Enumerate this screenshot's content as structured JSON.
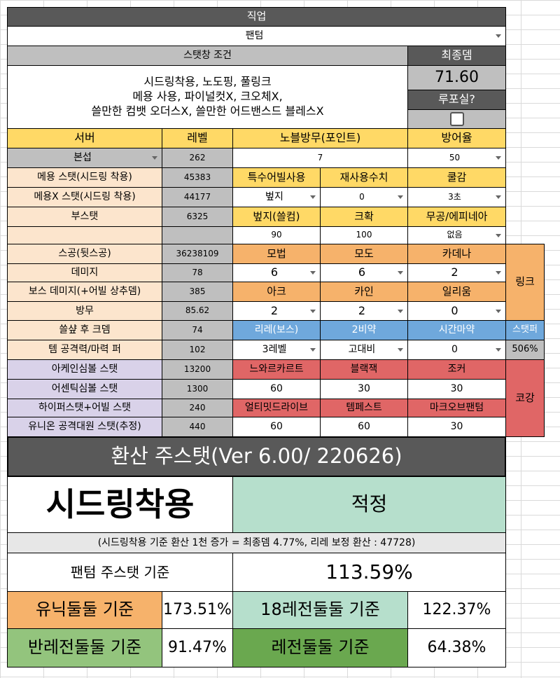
{
  "job": {
    "label": "직업",
    "value": "팬텀"
  },
  "stat_window": {
    "label": "스탯창 조건",
    "lines": [
      "시드링착용, 노도핑, 풀링크",
      "메용 사용, 파이널컷X, 크오체X,",
      "쓸만한 컴뱃 오더스X, 쓸만한 어드밴스드 블레스X"
    ]
  },
  "final_dmg": {
    "label": "최종뎀",
    "value": "71.60"
  },
  "lupo": {
    "label": "루포실?"
  },
  "left": {
    "server_label": "서버",
    "level_label": "레벨",
    "server": "본섭",
    "level": "262",
    "rows": [
      {
        "label": "메용 스탯(시드링 착용)",
        "value": "45383"
      },
      {
        "label": "메용X 스탯(시드링 착용)",
        "value": "44177"
      },
      {
        "label": "부스탯",
        "value": "6325"
      },
      {
        "label": "",
        "value": ""
      },
      {
        "label": "스공(뒷스공)",
        "value": "36238109"
      },
      {
        "label": "데미지",
        "value": "78"
      },
      {
        "label": "보스 데미지(+어빌 상추뎀)",
        "value": "385"
      },
      {
        "label": "방무",
        "value": "85.62"
      },
      {
        "label": "쓸샾 후 크뎀",
        "value": "74"
      },
      {
        "label": "템 공격력/마력 퍼",
        "value": "102"
      }
    ],
    "symbols": [
      {
        "label": "아케인심볼 스탯",
        "value": "13200"
      },
      {
        "label": "어센틱심볼 스탯",
        "value": "1300"
      },
      {
        "label": "하이퍼스탯+어빌 스탯",
        "value": "240"
      },
      {
        "label": "유니온 공격대원 스탯(추정)",
        "value": "440"
      }
    ]
  },
  "options": {
    "noble_label": "노블방무(포인트)",
    "noble_value": "7",
    "defense_label": "방어율",
    "defense_value": "50",
    "special_abil_label": "특수어빌사용",
    "special_abil_value": "벞지",
    "reuse_label": "재사용수치",
    "reuse_value": "0",
    "cooldown_label": "쿨감",
    "cooldown_value": "3초",
    "buff_label": "벞지(쓸컴)",
    "buff_value": "90",
    "crit_label": "크확",
    "crit_value": "100",
    "weapon_label": "무공/에피네아",
    "weapon_value": "없음"
  },
  "link": {
    "label": "링크",
    "heads": [
      "모법",
      "모도",
      "카데나"
    ],
    "vals": [
      "6",
      "6",
      "2"
    ],
    "heads2": [
      "아크",
      "카인",
      "일리움"
    ],
    "vals2": [
      "2",
      "2",
      "0"
    ]
  },
  "potion": {
    "heads": [
      "리레(보스)",
      "2비약",
      "시간마약"
    ],
    "vals": [
      "3레벨",
      "고대비",
      "0"
    ],
    "statper_label": "스탯퍼",
    "statper_value": "506%"
  },
  "cogang": {
    "label": "코강",
    "heads": [
      "느와르카르트",
      "블랙잭",
      "조커"
    ],
    "vals": [
      "60",
      "30",
      "30"
    ],
    "heads2": [
      "얼티밋드라이브",
      "템페스트",
      "마크오브팬텀"
    ],
    "vals2": [
      "60",
      "60",
      "30"
    ]
  },
  "result": {
    "title": "환산 주스탯(Ver 6.00/ 220626)",
    "big_label": "시드링착용",
    "status": "적정",
    "note": "(시드링착용 기준 환산 1천 증가 = 최종뎀 4.77%, 리레 보정 환산 : 47728)",
    "phantom_label": "팬텀 주스탯 기준",
    "phantom_value": "113.59%",
    "unique_label": "유닉둘둘 기준",
    "unique_value": "173.51%",
    "legend18_label": "18레전둘둘 기준",
    "legend18_value": "122.37%",
    "halflegend_label": "반레전둘둘 기준",
    "halflegend_value": "91.47%",
    "legend_label": "레전둘둘 기준",
    "legend_value": "64.38%"
  },
  "colors": {
    "dark": "#595959",
    "gray": "#bfbfbf",
    "yellow": "#ffd966",
    "peach": "#fce5cd",
    "orange": "#f6b26b",
    "blue": "#6fa8dc",
    "lavender": "#d9d2e9",
    "red": "#e06666",
    "mint": "#b6dfcc",
    "green": "#6aa84f"
  }
}
